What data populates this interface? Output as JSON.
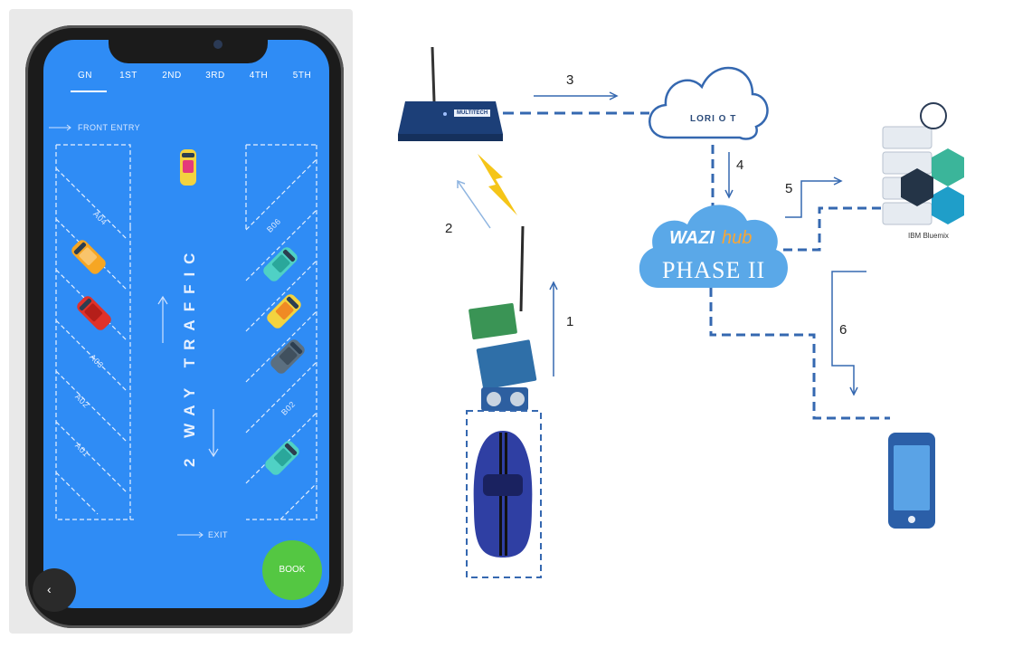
{
  "app": {
    "tabs": [
      {
        "label": "GN"
      },
      {
        "label": "1ST"
      },
      {
        "label": "2ND"
      },
      {
        "label": "3RD"
      },
      {
        "label": "4TH"
      },
      {
        "label": "5TH"
      }
    ],
    "front_entry": "FRONT ENTRY",
    "exit": "EXIT",
    "road_label": "2 WAY TRAFFIC",
    "slots_left": [
      "A04",
      "A03",
      "A02",
      "A01"
    ],
    "slots_right": [
      "B06",
      "B02"
    ],
    "book_label": "BOOK",
    "back_icon": "‹",
    "colors": {
      "screen": "#2f8cf5",
      "book": "#54c742"
    }
  },
  "diagram": {
    "steps": [
      "1",
      "2",
      "3",
      "4",
      "5",
      "6"
    ],
    "cloud_label": "LORI O T",
    "hub_wazi": "WAZI",
    "hub_hub": "hub",
    "hub_phase": "PHASE II",
    "gateway_brand": "MULTITECH",
    "server_label": "IBM Bluemix",
    "colors": {
      "link": "#3568b0",
      "cloud_fill": "#5aa8e8"
    }
  }
}
